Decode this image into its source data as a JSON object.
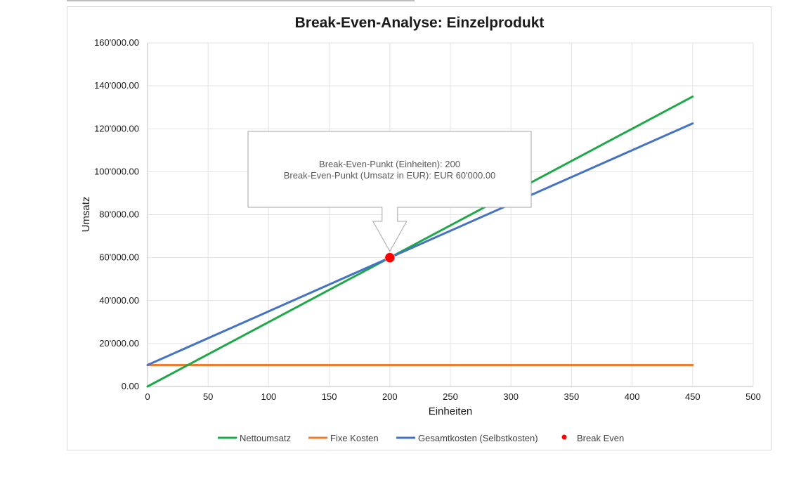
{
  "chart_data": {
    "type": "line",
    "title": "Break-Even-Analyse: Einzelprodukt",
    "xlabel": "Einheiten",
    "ylabel": "Umsatz",
    "xlim": [
      0,
      500
    ],
    "ylim": [
      0,
      160000
    ],
    "x_ticks": [
      "0",
      "50",
      "100",
      "150",
      "200",
      "250",
      "300",
      "350",
      "400",
      "450",
      "500"
    ],
    "y_ticks": [
      "0.00",
      "20'000.00",
      "40'000.00",
      "60'000.00",
      "80'000.00",
      "100'000.00",
      "120'000.00",
      "140'000.00",
      "160'000.00"
    ],
    "grid": true,
    "legend_position": "bottom",
    "series": [
      {
        "name": "Nettoumsatz",
        "color": "#1fa84a",
        "x": [
          0,
          450
        ],
        "y": [
          0,
          135000
        ]
      },
      {
        "name": "Fixe Kosten",
        "color": "#ed7d31",
        "x": [
          0,
          450
        ],
        "y": [
          10000,
          10000
        ]
      },
      {
        "name": "Gesamtkosten (Selbstkosten)",
        "color": "#4472c4",
        "x": [
          0,
          450
        ],
        "y": [
          10000,
          122500
        ]
      }
    ],
    "break_even": {
      "name": "Break Even",
      "color": "#ff0000",
      "x": 200,
      "y": 60000
    },
    "annotation": {
      "lines": [
        "Break-Even-Punkt (Einheiten): 200",
        "Break-Even-Punkt (Umsatz in EUR): EUR  60'000.00"
      ]
    }
  }
}
